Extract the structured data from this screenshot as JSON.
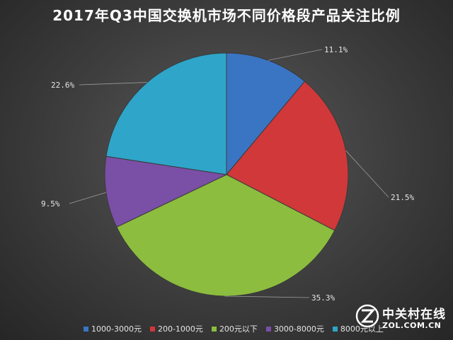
{
  "chart_data": {
    "type": "pie",
    "title": "2017年Q3中国交换机市场不同价格段产品关注比例",
    "categories": [
      "1000-3000元",
      "200-1000元",
      "200元以下",
      "3000-8000元",
      "8000元以上"
    ],
    "values": [
      11.1,
      21.5,
      35.3,
      9.5,
      22.6
    ],
    "value_labels": [
      "11.1%",
      "21.5%",
      "35.3%",
      "9.5%",
      "22.6%"
    ],
    "colors": [
      "#3a75c4",
      "#d0383a",
      "#8cbd3e",
      "#7a4fa6",
      "#2ea5c9"
    ],
    "legend_position": "bottom",
    "start_angle": "12 o'clock, clockwise"
  },
  "legend": {
    "items": [
      {
        "label": "1000-3000元",
        "color": "#3a75c4"
      },
      {
        "label": "200-1000元",
        "color": "#d0383a"
      },
      {
        "label": "200元以下",
        "color": "#8cbd3e"
      },
      {
        "label": "3000-8000元",
        "color": "#7a4fa6"
      },
      {
        "label": "8000元以上",
        "color": "#2ea5c9"
      }
    ]
  },
  "watermark": {
    "name_cn": "中关村在线",
    "name_en": "ZOL.COM.CN",
    "icon": "zol-logo-icon"
  }
}
